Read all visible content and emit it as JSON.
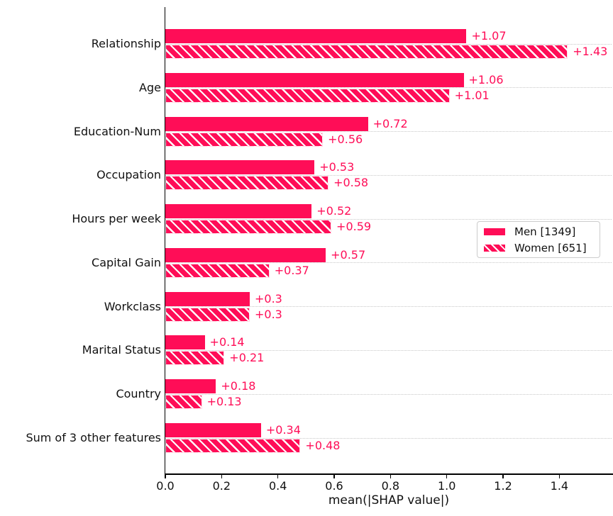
{
  "chart_data": {
    "type": "bar",
    "orientation": "horizontal",
    "title": "",
    "xlabel": "mean(|SHAP value|)",
    "xlim": [
      0,
      1.59
    ],
    "xticks": [
      0.0,
      0.2,
      0.4,
      0.6,
      0.8,
      1.0,
      1.2,
      1.4
    ],
    "xtick_labels": [
      "0.0",
      "0.2",
      "0.4",
      "0.6",
      "0.8",
      "1.0",
      "1.2",
      "1.4"
    ],
    "grid": "horizontal dotted lines at each category center",
    "legend_position": "center-right",
    "categories": [
      "Relationship",
      "Age",
      "Education-Num",
      "Occupation",
      "Hours per week",
      "Capital Gain",
      "Workclass",
      "Marital Status",
      "Country",
      "Sum of 3 other features"
    ],
    "series": [
      {
        "name": "Men [1349]",
        "style": "solid",
        "values": [
          1.07,
          1.06,
          0.72,
          0.53,
          0.52,
          0.57,
          0.3,
          0.14,
          0.18,
          0.34
        ],
        "value_labels": [
          "+1.07",
          "+1.06",
          "+0.72",
          "+0.53",
          "+0.52",
          "+0.57",
          "+0.3",
          "+0.14",
          "+0.18",
          "+0.34"
        ]
      },
      {
        "name": "Women [651]",
        "style": "hatched",
        "values": [
          1.43,
          1.01,
          0.56,
          0.58,
          0.59,
          0.37,
          0.3,
          0.21,
          0.13,
          0.48
        ],
        "value_labels": [
          "+1.43",
          "+1.01",
          "+0.56",
          "+0.58",
          "+0.59",
          "+0.37",
          "+0.3",
          "+0.21",
          "+0.13",
          "+0.48"
        ]
      }
    ],
    "colors": {
      "bar": "#ff0d57",
      "hatch_lines": "#ffffff",
      "value_text": "#ff0d57",
      "axis_text": "#111111",
      "gridline": "#c8c8c8"
    }
  }
}
